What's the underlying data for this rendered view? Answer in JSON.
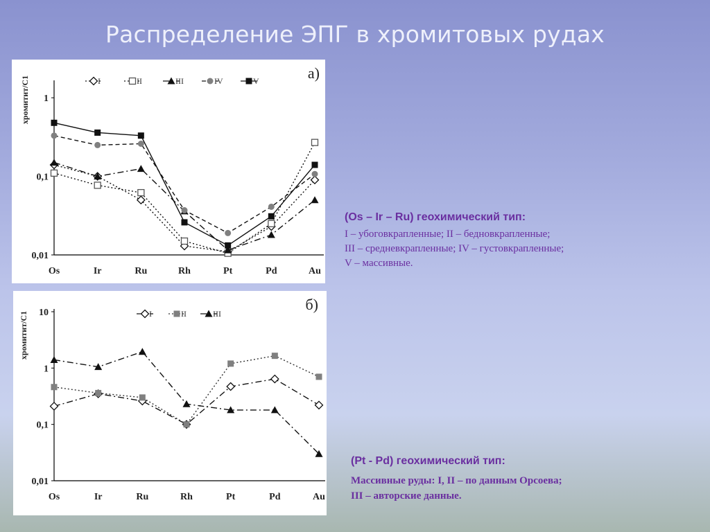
{
  "slide": {
    "title": "Распределение ЭПГ в хромитовых рудах"
  },
  "chart_data": [
    {
      "type": "line",
      "panel_label": "а)",
      "ylabel": "хромитит/С1",
      "yscale": "log",
      "ylim": [
        0.01,
        2
      ],
      "yticks": [
        {
          "value": 0.01,
          "label": "0,01"
        },
        {
          "value": 0.1,
          "label": "0,1"
        },
        {
          "value": 1,
          "label": "1"
        }
      ],
      "categories": [
        "Os",
        "Ir",
        "Ru",
        "Rh",
        "Pt",
        "Pd",
        "Au"
      ],
      "legend_position": "top",
      "series": [
        {
          "name": "I",
          "marker": "diamond-open",
          "line": "dotted",
          "values": [
            0.14,
            0.1,
            0.05,
            0.013,
            0.011,
            0.023,
            0.09
          ]
        },
        {
          "name": "II",
          "marker": "square-open",
          "line": "dotted",
          "values": [
            0.11,
            0.077,
            0.062,
            0.015,
            0.0105,
            0.025,
            0.27
          ]
        },
        {
          "name": "III",
          "marker": "triangle-filled",
          "line": "dashdot",
          "values": [
            0.15,
            0.1,
            0.125,
            0.036,
            0.0115,
            0.018,
            0.05
          ]
        },
        {
          "name": "IV",
          "marker": "circle-filled",
          "line": "dashed",
          "values": [
            0.33,
            0.25,
            0.26,
            0.037,
            0.019,
            0.041,
            0.107
          ]
        },
        {
          "name": "V",
          "marker": "square-filled",
          "line": "solid",
          "values": [
            0.48,
            0.36,
            0.33,
            0.026,
            0.0132,
            0.031,
            0.14
          ]
        }
      ]
    },
    {
      "type": "line",
      "panel_label": "б)",
      "ylabel": "хромитит/С1",
      "yscale": "log",
      "ylim": [
        0.01,
        10
      ],
      "yticks": [
        {
          "value": 0.01,
          "label": "0,01"
        },
        {
          "value": 0.1,
          "label": "0,1"
        },
        {
          "value": 1,
          "label": "1"
        },
        {
          "value": 10,
          "label": "10"
        }
      ],
      "categories": [
        "Os",
        "Ir",
        "Ru",
        "Rh",
        "Pt",
        "Pd",
        "Au"
      ],
      "legend_position": "top",
      "series": [
        {
          "name": "I",
          "marker": "diamond-open",
          "line": "dashdot",
          "values": [
            0.21,
            0.35,
            0.26,
            0.1,
            0.47,
            0.64,
            0.22
          ]
        },
        {
          "name": "II",
          "marker": "square-filled-gray",
          "line": "dotted",
          "values": [
            0.46,
            0.36,
            0.3,
            0.1,
            1.2,
            1.65,
            0.7
          ]
        },
        {
          "name": "III",
          "marker": "triangle-filled",
          "line": "dashdot",
          "values": [
            1.4,
            1.05,
            1.95,
            0.23,
            0.18,
            0.18,
            0.03
          ]
        }
      ]
    }
  ],
  "descriptions": {
    "a": {
      "heading": "(Os – Ir – Ru) геохимический тип:",
      "lines": [
        "I – убоговкрапленные; II – бедновкрапленные;",
        "III – средневкрапленные; IV – густовкрапленные;",
        "V – массивные."
      ]
    },
    "b": {
      "heading": "(Pt - Pd) геохимический тип:",
      "lines": [
        "Массивные руды: I, II – по данным Орсоева;",
        "III – авторские данные."
      ]
    }
  },
  "colors": {
    "text_accent": "#6a2fa0",
    "title": "#eef0fb",
    "series_dark": "#111111",
    "series_gray": "#808080"
  }
}
